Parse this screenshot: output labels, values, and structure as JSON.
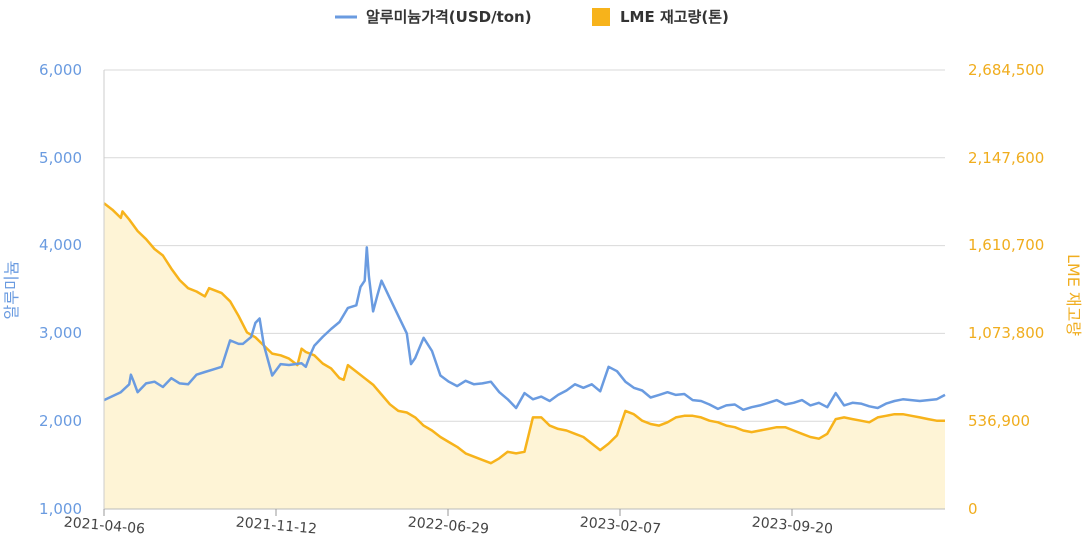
{
  "chart_data": {
    "type": "line",
    "legend": {
      "position": "top-center",
      "items": [
        {
          "label": "알루미늄가격(USD/ton)",
          "color": "#6a9be0",
          "marker": "line"
        },
        {
          "label": "LME 재고량(톤)",
          "color": "#f7b31b",
          "marker": "square"
        }
      ]
    },
    "y_left": {
      "label": "알루미늄",
      "ticks": [
        "6,000",
        "5,000",
        "4,000",
        "3,000",
        "2,000",
        "1,000"
      ],
      "range": [
        1000,
        6000
      ],
      "color": "#6a9be0"
    },
    "y_right": {
      "label": "LME 재고량",
      "ticks": [
        "2,684,500",
        "2,147,600",
        "1,610,700",
        "1,073,800",
        "536,900",
        "0"
      ],
      "range": [
        0,
        2684500
      ],
      "color": "#f0ad1e"
    },
    "x_ticks": [
      "2021-04-06",
      "2021-11-12",
      "2022-06-29",
      "2023-02-07",
      "2023-09-20"
    ],
    "grid": true,
    "series": [
      {
        "name": "알루미늄가격(USD/ton)",
        "axis": "left",
        "color": "#6a9be0",
        "style": "line",
        "points": [
          [
            0,
            2240
          ],
          [
            0.02,
            2330
          ],
          [
            0.03,
            2420
          ],
          [
            0.032,
            2530
          ],
          [
            0.035,
            2460
          ],
          [
            0.04,
            2330
          ],
          [
            0.05,
            2430
          ],
          [
            0.06,
            2450
          ],
          [
            0.07,
            2390
          ],
          [
            0.08,
            2490
          ],
          [
            0.09,
            2430
          ],
          [
            0.1,
            2420
          ],
          [
            0.11,
            2530
          ],
          [
            0.12,
            2560
          ],
          [
            0.13,
            2590
          ],
          [
            0.14,
            2620
          ],
          [
            0.15,
            2920
          ],
          [
            0.16,
            2880
          ],
          [
            0.165,
            2880
          ],
          [
            0.175,
            2960
          ],
          [
            0.18,
            3120
          ],
          [
            0.185,
            3170
          ],
          [
            0.19,
            2870
          ],
          [
            0.2,
            2520
          ],
          [
            0.21,
            2650
          ],
          [
            0.22,
            2640
          ],
          [
            0.235,
            2660
          ],
          [
            0.24,
            2620
          ],
          [
            0.245,
            2750
          ],
          [
            0.25,
            2860
          ],
          [
            0.26,
            2960
          ],
          [
            0.27,
            3050
          ],
          [
            0.28,
            3130
          ],
          [
            0.29,
            3290
          ],
          [
            0.3,
            3320
          ],
          [
            0.305,
            3530
          ],
          [
            0.31,
            3600
          ],
          [
            0.3125,
            3980
          ],
          [
            0.315,
            3650
          ],
          [
            0.32,
            3250
          ],
          [
            0.325,
            3430
          ],
          [
            0.33,
            3600
          ],
          [
            0.34,
            3400
          ],
          [
            0.35,
            3200
          ],
          [
            0.36,
            3000
          ],
          [
            0.365,
            2650
          ],
          [
            0.37,
            2720
          ],
          [
            0.38,
            2950
          ],
          [
            0.39,
            2800
          ],
          [
            0.4,
            2520
          ],
          [
            0.41,
            2450
          ],
          [
            0.42,
            2400
          ],
          [
            0.43,
            2460
          ],
          [
            0.44,
            2420
          ],
          [
            0.45,
            2430
          ],
          [
            0.46,
            2450
          ],
          [
            0.47,
            2330
          ],
          [
            0.48,
            2250
          ],
          [
            0.49,
            2150
          ],
          [
            0.5,
            2320
          ],
          [
            0.51,
            2250
          ],
          [
            0.52,
            2280
          ],
          [
            0.53,
            2230
          ],
          [
            0.54,
            2300
          ],
          [
            0.55,
            2350
          ],
          [
            0.56,
            2420
          ],
          [
            0.57,
            2380
          ],
          [
            0.58,
            2420
          ],
          [
            0.59,
            2340
          ],
          [
            0.6,
            2620
          ],
          [
            0.61,
            2570
          ],
          [
            0.62,
            2450
          ],
          [
            0.63,
            2380
          ],
          [
            0.64,
            2350
          ],
          [
            0.65,
            2270
          ],
          [
            0.66,
            2300
          ],
          [
            0.67,
            2330
          ],
          [
            0.68,
            2300
          ],
          [
            0.69,
            2310
          ],
          [
            0.7,
            2240
          ],
          [
            0.71,
            2230
          ],
          [
            0.72,
            2190
          ],
          [
            0.73,
            2140
          ],
          [
            0.74,
            2180
          ],
          [
            0.75,
            2190
          ],
          [
            0.76,
            2130
          ],
          [
            0.77,
            2160
          ],
          [
            0.78,
            2180
          ],
          [
            0.79,
            2210
          ],
          [
            0.8,
            2240
          ],
          [
            0.81,
            2190
          ],
          [
            0.82,
            2210
          ],
          [
            0.83,
            2240
          ],
          [
            0.84,
            2180
          ],
          [
            0.85,
            2210
          ],
          [
            0.86,
            2160
          ],
          [
            0.87,
            2320
          ],
          [
            0.88,
            2180
          ],
          [
            0.89,
            2210
          ],
          [
            0.9,
            2200
          ],
          [
            0.91,
            2170
          ],
          [
            0.92,
            2150
          ],
          [
            0.93,
            2200
          ],
          [
            0.94,
            2230
          ],
          [
            0.95,
            2250
          ],
          [
            0.96,
            2240
          ],
          [
            0.97,
            2230
          ],
          [
            0.98,
            2240
          ],
          [
            0.99,
            2250
          ],
          [
            1,
            2300
          ]
        ]
      },
      {
        "name": "LME 재고량(톤)",
        "axis": "right",
        "color": "#f7b31b",
        "style": "area",
        "points": [
          [
            0,
            1870000
          ],
          [
            0.01,
            1830000
          ],
          [
            0.02,
            1780000
          ],
          [
            0.022,
            1820000
          ],
          [
            0.03,
            1770000
          ],
          [
            0.04,
            1700000
          ],
          [
            0.05,
            1650000
          ],
          [
            0.06,
            1590000
          ],
          [
            0.07,
            1550000
          ],
          [
            0.08,
            1470000
          ],
          [
            0.09,
            1400000
          ],
          [
            0.1,
            1350000
          ],
          [
            0.11,
            1330000
          ],
          [
            0.12,
            1300000
          ],
          [
            0.125,
            1350000
          ],
          [
            0.14,
            1320000
          ],
          [
            0.15,
            1270000
          ],
          [
            0.16,
            1180000
          ],
          [
            0.17,
            1080000
          ],
          [
            0.18,
            1050000
          ],
          [
            0.19,
            1000000
          ],
          [
            0.2,
            950000
          ],
          [
            0.21,
            940000
          ],
          [
            0.22,
            920000
          ],
          [
            0.23,
            880000
          ],
          [
            0.235,
            980000
          ],
          [
            0.24,
            960000
          ],
          [
            0.25,
            940000
          ],
          [
            0.26,
            890000
          ],
          [
            0.27,
            860000
          ],
          [
            0.28,
            800000
          ],
          [
            0.285,
            790000
          ],
          [
            0.29,
            880000
          ],
          [
            0.3,
            840000
          ],
          [
            0.31,
            800000
          ],
          [
            0.32,
            760000
          ],
          [
            0.33,
            700000
          ],
          [
            0.34,
            640000
          ],
          [
            0.35,
            600000
          ],
          [
            0.36,
            590000
          ],
          [
            0.37,
            560000
          ],
          [
            0.38,
            510000
          ],
          [
            0.39,
            480000
          ],
          [
            0.4,
            440000
          ],
          [
            0.41,
            410000
          ],
          [
            0.42,
            380000
          ],
          [
            0.43,
            340000
          ],
          [
            0.44,
            320000
          ],
          [
            0.45,
            300000
          ],
          [
            0.46,
            280000
          ],
          [
            0.47,
            310000
          ],
          [
            0.48,
            350000
          ],
          [
            0.49,
            340000
          ],
          [
            0.5,
            350000
          ],
          [
            0.51,
            560000
          ],
          [
            0.52,
            560000
          ],
          [
            0.53,
            510000
          ],
          [
            0.54,
            490000
          ],
          [
            0.55,
            480000
          ],
          [
            0.56,
            460000
          ],
          [
            0.57,
            440000
          ],
          [
            0.58,
            400000
          ],
          [
            0.59,
            360000
          ],
          [
            0.6,
            400000
          ],
          [
            0.61,
            450000
          ],
          [
            0.62,
            600000
          ],
          [
            0.63,
            580000
          ],
          [
            0.64,
            540000
          ],
          [
            0.65,
            520000
          ],
          [
            0.66,
            510000
          ],
          [
            0.67,
            530000
          ],
          [
            0.68,
            560000
          ],
          [
            0.69,
            570000
          ],
          [
            0.7,
            570000
          ],
          [
            0.71,
            560000
          ],
          [
            0.72,
            540000
          ],
          [
            0.73,
            530000
          ],
          [
            0.74,
            510000
          ],
          [
            0.75,
            500000
          ],
          [
            0.76,
            480000
          ],
          [
            0.77,
            470000
          ],
          [
            0.78,
            480000
          ],
          [
            0.79,
            490000
          ],
          [
            0.8,
            500000
          ],
          [
            0.81,
            500000
          ],
          [
            0.82,
            480000
          ],
          [
            0.83,
            460000
          ],
          [
            0.84,
            440000
          ],
          [
            0.85,
            430000
          ],
          [
            0.86,
            460000
          ],
          [
            0.87,
            550000
          ],
          [
            0.88,
            560000
          ],
          [
            0.89,
            550000
          ],
          [
            0.9,
            540000
          ],
          [
            0.91,
            530000
          ],
          [
            0.92,
            560000
          ],
          [
            0.93,
            570000
          ],
          [
            0.94,
            580000
          ],
          [
            0.95,
            580000
          ],
          [
            0.96,
            570000
          ],
          [
            0.97,
            560000
          ],
          [
            0.98,
            550000
          ],
          [
            0.99,
            540000
          ],
          [
            1,
            540000
          ]
        ]
      }
    ]
  }
}
